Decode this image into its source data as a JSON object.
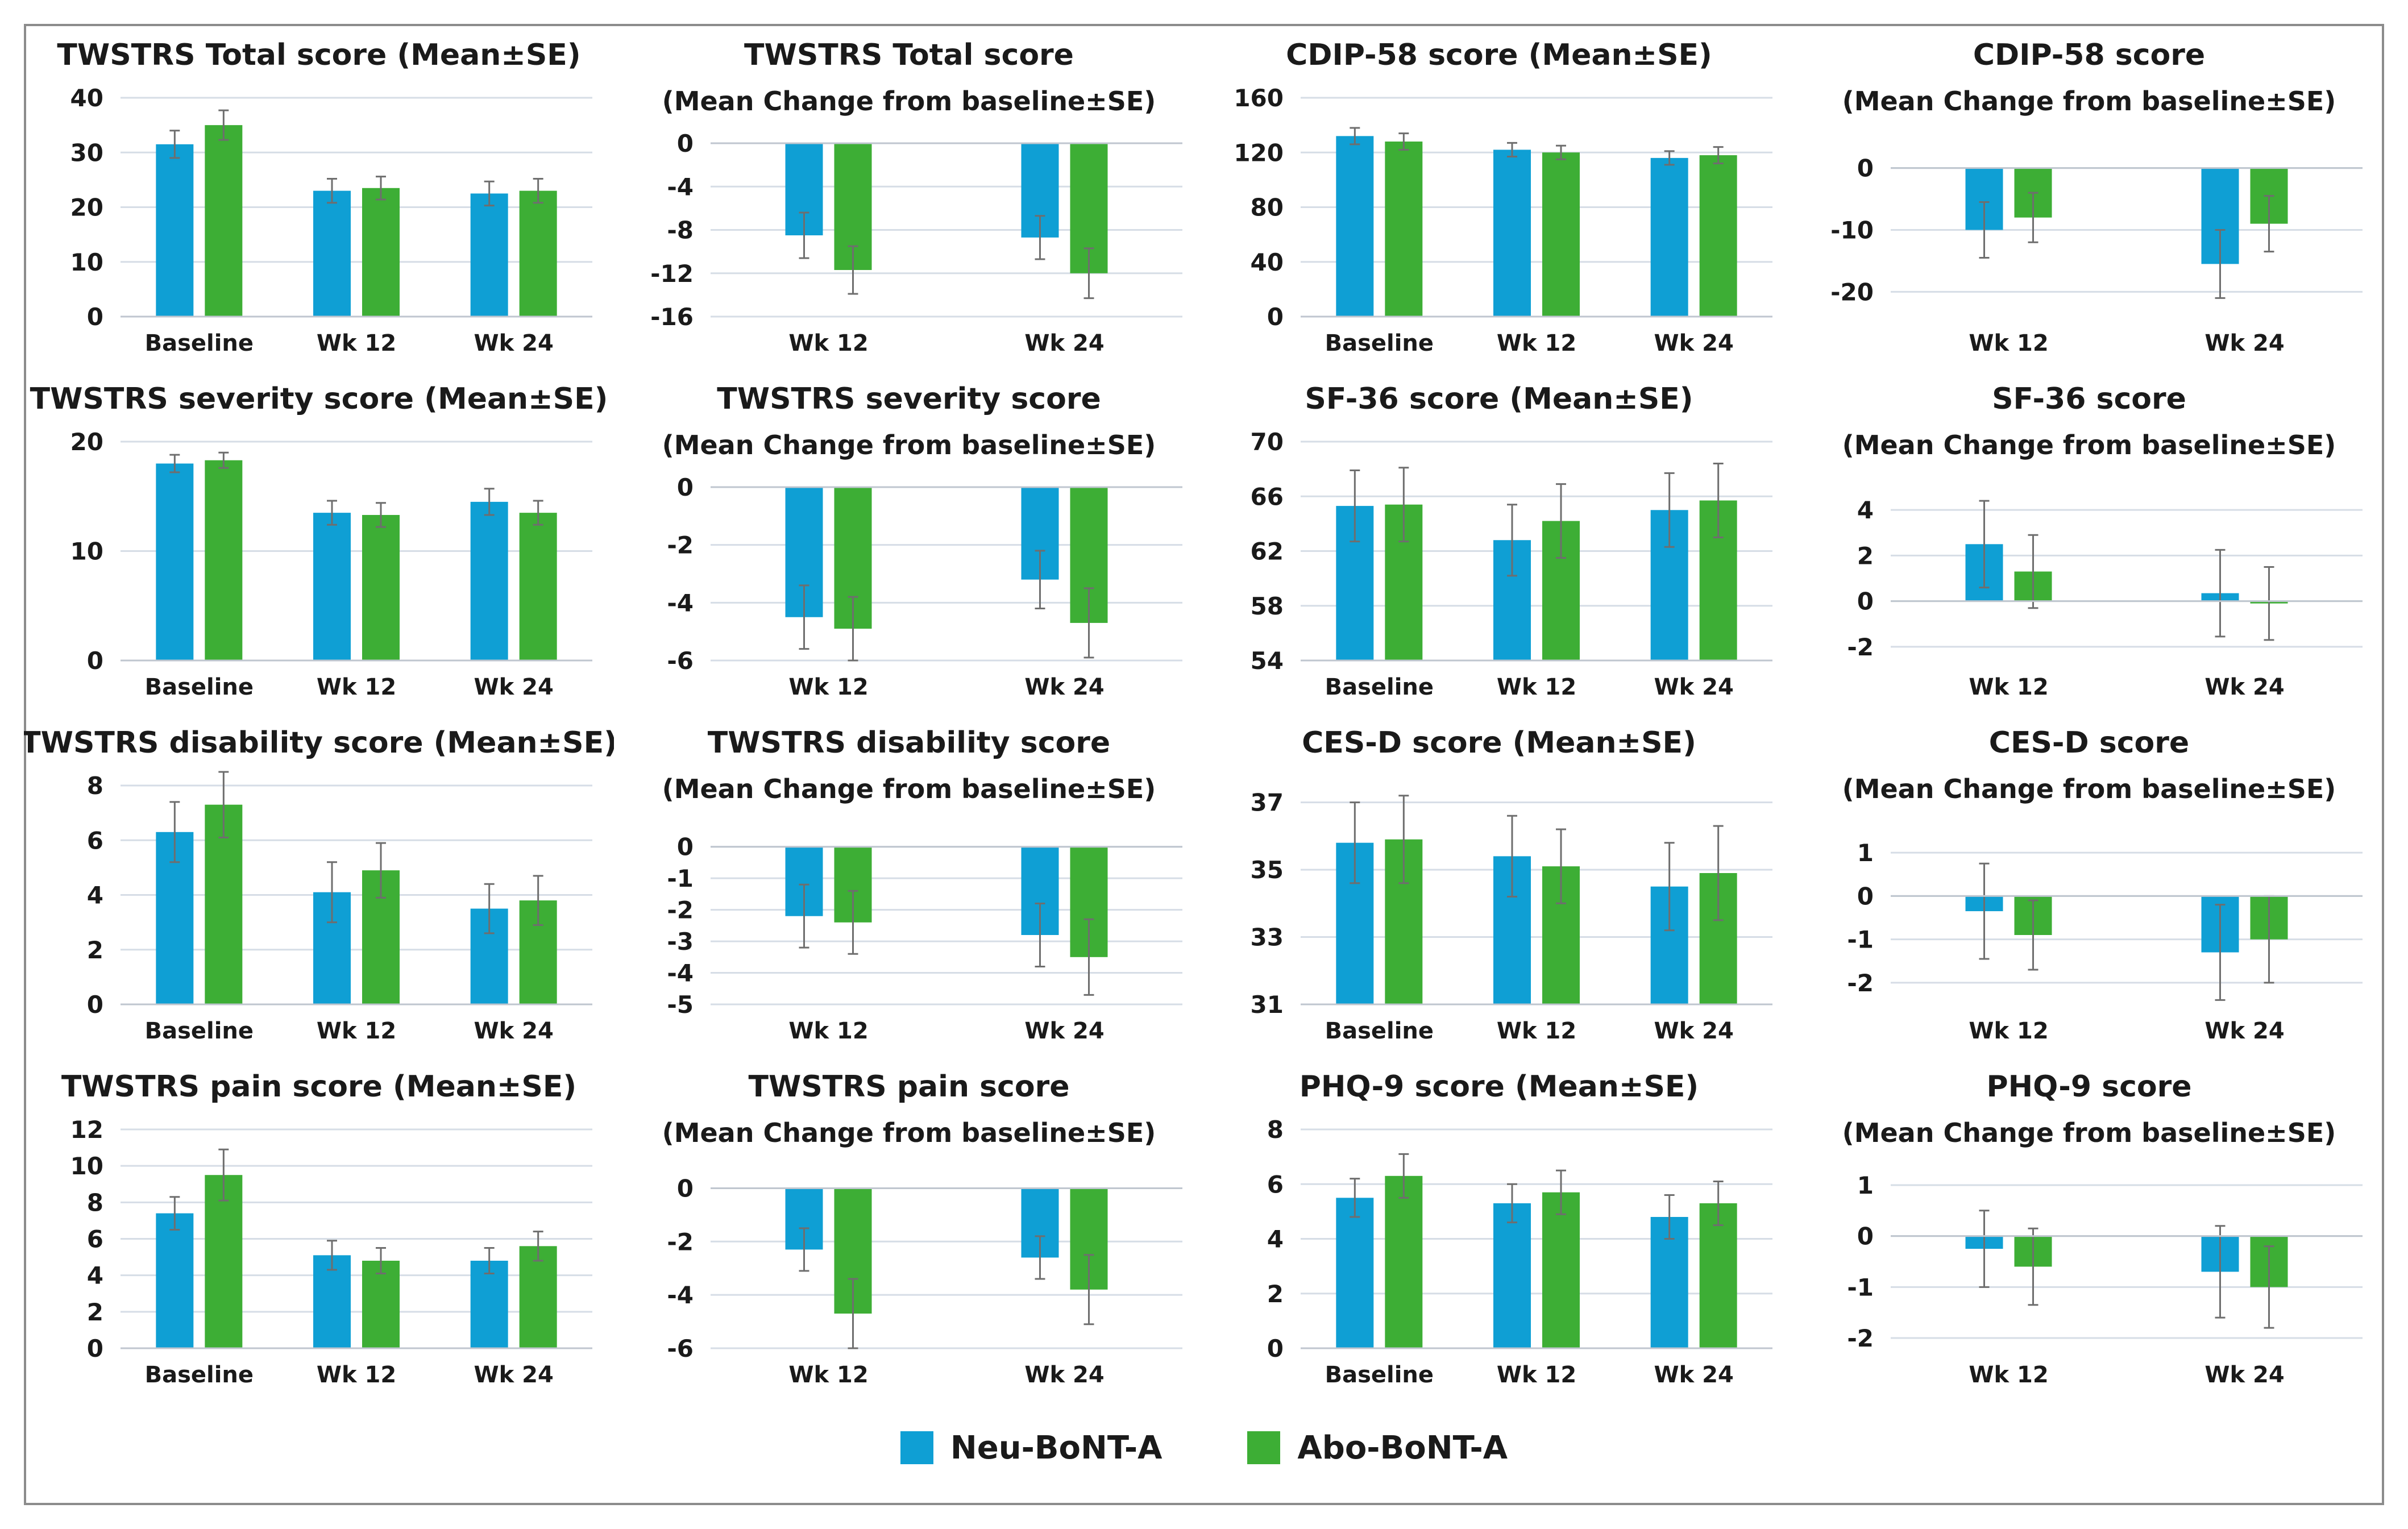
{
  "colors": {
    "neu": "#0f9fd4",
    "abo": "#3dae35",
    "grid": "#d6dde6",
    "axis": "#bfc6cf",
    "error": "#6e6e6e"
  },
  "legend": [
    {
      "label": "Neu-BoNT-A",
      "color": "#0f9fd4"
    },
    {
      "label": "Abo-BoNT-A",
      "color": "#3dae35"
    }
  ],
  "chart_data": [
    {
      "type": "bar",
      "title": "TWSTRS Total score (Mean±SE)",
      "subtitle": "",
      "categories": [
        "Baseline",
        "Wk 12",
        "Wk 24"
      ],
      "yticks": [
        0,
        10,
        20,
        30,
        40
      ],
      "ylim": [
        0,
        40
      ],
      "series": [
        {
          "name": "Neu-BoNT-A",
          "values": [
            31.5,
            23,
            22.5
          ],
          "errors": [
            2.5,
            2.2,
            2.2
          ]
        },
        {
          "name": "Abo-BoNT-A",
          "values": [
            35,
            23.5,
            23
          ],
          "errors": [
            2.7,
            2.1,
            2.2
          ]
        }
      ]
    },
    {
      "type": "bar",
      "title": "TWSTRS Total score",
      "subtitle": "(Mean Change from baseline±SE)",
      "categories": [
        "Wk 12",
        "Wk 24"
      ],
      "yticks": [
        0,
        -4,
        -8,
        -12,
        -16
      ],
      "ylim": [
        -16,
        0
      ],
      "series": [
        {
          "name": "Neu-BoNT-A",
          "values": [
            -8.5,
            -8.7
          ],
          "errors": [
            2.1,
            2.0
          ]
        },
        {
          "name": "Abo-BoNT-A",
          "values": [
            -11.7,
            -12
          ],
          "errors": [
            2.2,
            2.3
          ]
        }
      ]
    },
    {
      "type": "bar",
      "title": "CDIP-58 score (Mean±SE)",
      "subtitle": "",
      "categories": [
        "Baseline",
        "Wk 12",
        "Wk 24"
      ],
      "yticks": [
        0,
        40,
        80,
        120,
        160
      ],
      "ylim": [
        0,
        160
      ],
      "series": [
        {
          "name": "Neu-BoNT-A",
          "values": [
            132,
            122,
            116
          ],
          "errors": [
            6,
            5,
            5
          ]
        },
        {
          "name": "Abo-BoNT-A",
          "values": [
            128,
            120,
            118
          ],
          "errors": [
            6,
            5,
            6
          ]
        }
      ]
    },
    {
      "type": "bar",
      "title": "CDIP-58 score",
      "subtitle": "(Mean Change from baseline±SE)",
      "categories": [
        "Wk 12",
        "Wk 24"
      ],
      "yticks": [
        0,
        -10,
        -20
      ],
      "ylim": [
        -24,
        4
      ],
      "series": [
        {
          "name": "Neu-BoNT-A",
          "values": [
            -10,
            -15.5
          ],
          "errors": [
            4.5,
            5.5
          ]
        },
        {
          "name": "Abo-BoNT-A",
          "values": [
            -8,
            -9
          ],
          "errors": [
            4,
            4.5
          ]
        }
      ]
    },
    {
      "type": "bar",
      "title": "TWSTRS severity score (Mean±SE)",
      "subtitle": "",
      "categories": [
        "Baseline",
        "Wk 12",
        "Wk 24"
      ],
      "yticks": [
        0,
        10,
        20
      ],
      "ylim": [
        0,
        20
      ],
      "series": [
        {
          "name": "Neu-BoNT-A",
          "values": [
            18,
            13.5,
            14.5
          ],
          "errors": [
            0.8,
            1.1,
            1.2
          ]
        },
        {
          "name": "Abo-BoNT-A",
          "values": [
            18.3,
            13.3,
            13.5
          ],
          "errors": [
            0.7,
            1.1,
            1.1
          ]
        }
      ]
    },
    {
      "type": "bar",
      "title": "TWSTRS severity score",
      "subtitle": "(Mean Change from baseline±SE)",
      "categories": [
        "Wk 12",
        "Wk 24"
      ],
      "yticks": [
        0,
        -2,
        -4,
        -6
      ],
      "ylim": [
        -6,
        0
      ],
      "series": [
        {
          "name": "Neu-BoNT-A",
          "values": [
            -4.5,
            -3.2
          ],
          "errors": [
            1.1,
            1.0
          ]
        },
        {
          "name": "Abo-BoNT-A",
          "values": [
            -4.9,
            -4.7
          ],
          "errors": [
            1.1,
            1.2
          ]
        }
      ]
    },
    {
      "type": "bar",
      "title": "SF-36 score (Mean±SE)",
      "subtitle": "",
      "categories": [
        "Baseline",
        "Wk 12",
        "Wk 24"
      ],
      "yticks": [
        54,
        58,
        62,
        66,
        70
      ],
      "ylim": [
        54,
        70
      ],
      "series": [
        {
          "name": "Neu-BoNT-A",
          "values": [
            65.3,
            62.8,
            65
          ],
          "errors": [
            2.6,
            2.6,
            2.7
          ]
        },
        {
          "name": "Abo-BoNT-A",
          "values": [
            65.4,
            64.2,
            65.7
          ],
          "errors": [
            2.7,
            2.7,
            2.7
          ]
        }
      ]
    },
    {
      "type": "bar",
      "title": "SF-36 score",
      "subtitle": "(Mean Change from baseline±SE)",
      "categories": [
        "Wk 12",
        "Wk 24"
      ],
      "yticks": [
        -2,
        0,
        2,
        4
      ],
      "ylim": [
        -2.6,
        5
      ],
      "series": [
        {
          "name": "Neu-BoNT-A",
          "values": [
            2.5,
            0.35
          ],
          "errors": [
            1.9,
            1.9
          ]
        },
        {
          "name": "Abo-BoNT-A",
          "values": [
            1.3,
            -0.1
          ],
          "errors": [
            1.6,
            1.6
          ]
        }
      ]
    },
    {
      "type": "bar",
      "title": "TWSTRS disability score (Mean±SE)",
      "subtitle": "",
      "categories": [
        "Baseline",
        "Wk 12",
        "Wk 24"
      ],
      "yticks": [
        0,
        2,
        4,
        6,
        8
      ],
      "ylim": [
        0,
        8
      ],
      "series": [
        {
          "name": "Neu-BoNT-A",
          "values": [
            6.3,
            4.1,
            3.5
          ],
          "errors": [
            1.1,
            1.1,
            0.9
          ]
        },
        {
          "name": "Abo-BoNT-A",
          "values": [
            7.3,
            4.9,
            3.8
          ],
          "errors": [
            1.2,
            1.0,
            0.9
          ]
        }
      ]
    },
    {
      "type": "bar",
      "title": "TWSTRS disability score",
      "subtitle": "(Mean Change from baseline±SE)",
      "categories": [
        "Wk 12",
        "Wk 24"
      ],
      "yticks": [
        0,
        -1,
        -2,
        -3,
        -4,
        -5
      ],
      "ylim": [
        -5,
        0.5
      ],
      "series": [
        {
          "name": "Neu-BoNT-A",
          "values": [
            -2.2,
            -2.8
          ],
          "errors": [
            1.0,
            1.0
          ]
        },
        {
          "name": "Abo-BoNT-A",
          "values": [
            -2.4,
            -3.5
          ],
          "errors": [
            1.0,
            1.2
          ]
        }
      ]
    },
    {
      "type": "bar",
      "title": "CES-D score (Mean±SE)",
      "subtitle": "",
      "categories": [
        "Baseline",
        "Wk 12",
        "Wk 24"
      ],
      "yticks": [
        31,
        33,
        35,
        37
      ],
      "ylim": [
        31,
        37.5
      ],
      "series": [
        {
          "name": "Neu-BoNT-A",
          "values": [
            35.8,
            35.4,
            34.5
          ],
          "errors": [
            1.2,
            1.2,
            1.3
          ]
        },
        {
          "name": "Abo-BoNT-A",
          "values": [
            35.9,
            35.1,
            34.9
          ],
          "errors": [
            1.3,
            1.1,
            1.4
          ]
        }
      ]
    },
    {
      "type": "bar",
      "title": "CES-D score",
      "subtitle": "(Mean Change from baseline±SE)",
      "categories": [
        "Wk 12",
        "Wk 24"
      ],
      "yticks": [
        -2,
        -1,
        0,
        1
      ],
      "ylim": [
        -2.5,
        1.5
      ],
      "series": [
        {
          "name": "Neu-BoNT-A",
          "values": [
            -0.35,
            -1.3
          ],
          "errors": [
            1.1,
            1.1
          ]
        },
        {
          "name": "Abo-BoNT-A",
          "values": [
            -0.9,
            -1.0
          ],
          "errors": [
            0.8,
            1.0
          ]
        }
      ]
    },
    {
      "type": "bar",
      "title": "TWSTRS pain score (Mean±SE)",
      "subtitle": "",
      "categories": [
        "Baseline",
        "Wk 12",
        "Wk 24"
      ],
      "yticks": [
        0,
        2,
        4,
        6,
        8,
        10,
        12
      ],
      "ylim": [
        0,
        12
      ],
      "series": [
        {
          "name": "Neu-BoNT-A",
          "values": [
            7.4,
            5.1,
            4.8
          ],
          "errors": [
            0.9,
            0.8,
            0.7
          ]
        },
        {
          "name": "Abo-BoNT-A",
          "values": [
            9.5,
            4.8,
            5.6
          ],
          "errors": [
            1.4,
            0.7,
            0.8
          ]
        }
      ]
    },
    {
      "type": "bar",
      "title": "TWSTRS pain score",
      "subtitle": "(Mean Change from baseline±SE)",
      "categories": [
        "Wk 12",
        "Wk 24"
      ],
      "yticks": [
        0,
        -2,
        -4,
        -6
      ],
      "ylim": [
        -6,
        0.5
      ],
      "series": [
        {
          "name": "Neu-BoNT-A",
          "values": [
            -2.3,
            -2.6
          ],
          "errors": [
            0.8,
            0.8
          ]
        },
        {
          "name": "Abo-BoNT-A",
          "values": [
            -4.7,
            -3.8
          ],
          "errors": [
            1.3,
            1.3
          ]
        }
      ]
    },
    {
      "type": "bar",
      "title": "PHQ-9 score (Mean±SE)",
      "subtitle": "",
      "categories": [
        "Baseline",
        "Wk 12",
        "Wk 24"
      ],
      "yticks": [
        0,
        2,
        4,
        6,
        8
      ],
      "ylim": [
        0,
        8
      ],
      "series": [
        {
          "name": "Neu-BoNT-A",
          "values": [
            5.5,
            5.3,
            4.8
          ],
          "errors": [
            0.7,
            0.7,
            0.8
          ]
        },
        {
          "name": "Abo-BoNT-A",
          "values": [
            6.3,
            5.7,
            5.3
          ],
          "errors": [
            0.8,
            0.8,
            0.8
          ]
        }
      ]
    },
    {
      "type": "bar",
      "title": "PHQ-9 score",
      "subtitle": "(Mean Change from baseline±SE)",
      "categories": [
        "Wk 12",
        "Wk 24"
      ],
      "yticks": [
        -2,
        -1,
        0,
        1
      ],
      "ylim": [
        -2.2,
        1.2
      ],
      "series": [
        {
          "name": "Neu-BoNT-A",
          "values": [
            -0.25,
            -0.7
          ],
          "errors": [
            0.75,
            0.9
          ]
        },
        {
          "name": "Abo-BoNT-A",
          "values": [
            -0.6,
            -1.0
          ],
          "errors": [
            0.75,
            0.8
          ]
        }
      ]
    }
  ]
}
